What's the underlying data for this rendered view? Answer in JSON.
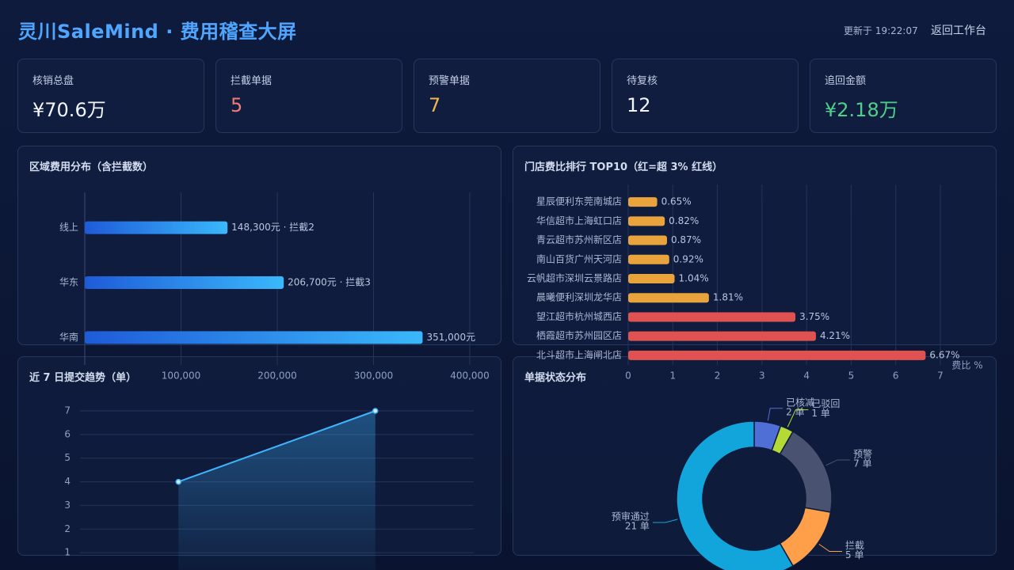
{
  "header": {
    "title": "灵川SaleMind · 费用稽查大屏",
    "updated": "更新于 19:22:07",
    "back_button": "返回工作台"
  },
  "kpis": [
    {
      "label": "核销总盘",
      "value": "¥70.6万"
    },
    {
      "label": "拦截单据",
      "value": 5
    },
    {
      "label": "预警单据",
      "value": 7
    },
    {
      "label": "待复核",
      "value": 12
    },
    {
      "label": "追回金额",
      "value": "¥2.18万"
    }
  ],
  "chart_data": [
    {
      "type": "bar",
      "orientation": "horizontal",
      "title": "区域费用分布（含拦截数）",
      "categories": [
        "线上",
        "华东",
        "华南"
      ],
      "values": [
        148300,
        206700,
        351000
      ],
      "value_labels": [
        "148,300元 · 拦截2",
        "206,700元 · 拦截3",
        "351,000元"
      ],
      "color": [
        "#1e5bd8",
        "#3ab8fb"
      ],
      "xlim": [
        0,
        400000
      ],
      "xticks": [
        {
          "value": 100000,
          "label": "100,000"
        },
        {
          "value": 200000,
          "label": "200,000"
        },
        {
          "value": 300000,
          "label": "300,000"
        },
        {
          "value": 400000,
          "label": "400,000"
        }
      ],
      "grid": true
    },
    {
      "type": "bar",
      "orientation": "horizontal",
      "title": "门店费比排行 TOP10（红=超 3% 红线）",
      "categories": [
        "星辰便利东莞南城店",
        "华信超市上海虹口店",
        "青云超市苏州新区店",
        "南山百货广州天河店",
        "云帆超市深圳云景路店",
        "晨曦便利深圳龙华店",
        "望江超市杭州城西店",
        "栖霞超市苏州园区店",
        "北斗超市上海闸北店"
      ],
      "values": [
        0.65,
        0.82,
        0.87,
        0.92,
        1.04,
        1.81,
        3.75,
        4.21,
        6.67
      ],
      "value_labels": [
        "0.65%",
        "0.82%",
        "0.87%",
        "0.92%",
        "1.04%",
        "1.81%",
        "3.75%",
        "4.21%",
        "6.67%"
      ],
      "colors": [
        "#e8a33d",
        "#e8a33d",
        "#e8a33d",
        "#e8a33d",
        "#e8a33d",
        "#e8a33d",
        "#e05252",
        "#e05252",
        "#e05252"
      ],
      "xlabel": "费比 %",
      "xlim": [
        0,
        7
      ],
      "xticks": [
        0,
        1,
        2,
        3,
        4,
        5,
        6,
        7
      ],
      "grid": true
    },
    {
      "type": "line",
      "title": "近 7 日提交趋势（单）",
      "categories": [
        null,
        null
      ],
      "values": [
        4,
        7
      ],
      "color": "#3fb5ff",
      "ylim": [
        0,
        7
      ],
      "yticks": [
        1,
        2,
        3,
        4,
        5,
        6,
        7
      ],
      "grid": true
    },
    {
      "type": "pie",
      "title": "单据状态分布",
      "categories": [
        "已核减",
        "已驳回",
        "预警",
        "拦截",
        "预审通过"
      ],
      "values": [
        2,
        1,
        7,
        5,
        21
      ],
      "value_labels": [
        "2 单",
        "1 单",
        "7 单",
        "5 单",
        "21 单"
      ],
      "colors": [
        "#4f6fd6",
        "#b5d935",
        "#4a5272",
        "#ff9f4a",
        "#12a5dc"
      ]
    }
  ]
}
